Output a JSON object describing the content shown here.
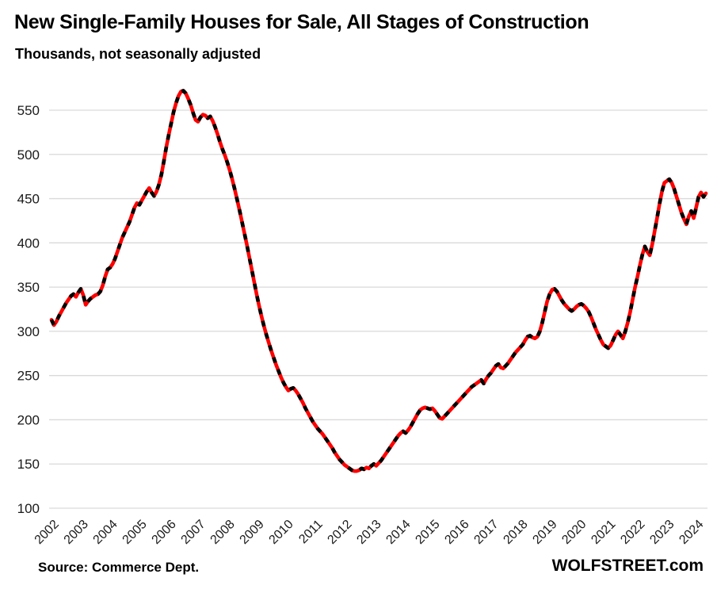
{
  "chart_data": {
    "type": "line",
    "title": "New Single-Family Houses for Sale, All Stages of Construction",
    "subtitle": "Thousands, not seasonally adjusted",
    "x_start": "2002-01",
    "x_frequency": "monthly",
    "x_labels": [
      "2002",
      "2003",
      "2004",
      "2005",
      "2006",
      "2007",
      "2008",
      "2009",
      "2010",
      "2011",
      "2012",
      "2013",
      "2014",
      "2015",
      "2016",
      "2017",
      "2018",
      "2019",
      "2020",
      "2021",
      "2022",
      "2023",
      "2024"
    ],
    "y_ticks": [
      100,
      150,
      200,
      250,
      300,
      350,
      400,
      450,
      500,
      550
    ],
    "ylim": [
      100,
      580
    ],
    "grid": "horizontal-only",
    "legend_position": "none",
    "colors": {
      "line": "#ff0000",
      "dash_overlay": "#000000",
      "gridline": "#d9d9d9",
      "text": "#1a1a1a"
    },
    "series": [
      {
        "name": "New single-family houses for sale (thousands, NSA)",
        "style": "red solid line with black dash overlay",
        "values": [
          313,
          307,
          311,
          317,
          322,
          327,
          332,
          336,
          340,
          342,
          339,
          344,
          348,
          341,
          330,
          334,
          337,
          339,
          341,
          342,
          345,
          352,
          362,
          370,
          372,
          376,
          382,
          390,
          398,
          406,
          412,
          418,
          424,
          432,
          440,
          445,
          443,
          448,
          453,
          458,
          462,
          457,
          453,
          458,
          466,
          477,
          492,
          508,
          522,
          535,
          548,
          558,
          566,
          571,
          572,
          569,
          563,
          556,
          547,
          539,
          537,
          542,
          545,
          544,
          541,
          543,
          538,
          531,
          523,
          514,
          506,
          499,
          491,
          482,
          472,
          461,
          449,
          437,
          424,
          411,
          398,
          384,
          370,
          356,
          342,
          329,
          317,
          306,
          296,
          287,
          278,
          270,
          262,
          255,
          248,
          242,
          237,
          233,
          235,
          236,
          233,
          229,
          224,
          219,
          213,
          208,
          203,
          198,
          194,
          190,
          187,
          184,
          180,
          176,
          172,
          168,
          163,
          159,
          155,
          152,
          149,
          147,
          145,
          143,
          142,
          142,
          143,
          145,
          144,
          146,
          145,
          148,
          150,
          148,
          151,
          154,
          158,
          162,
          166,
          170,
          174,
          178,
          182,
          185,
          187,
          185,
          188,
          192,
          197,
          202,
          207,
          211,
          213,
          214,
          213,
          212,
          213,
          210,
          206,
          202,
          201,
          204,
          207,
          210,
          213,
          216,
          219,
          222,
          225,
          228,
          231,
          234,
          237,
          239,
          241,
          243,
          245,
          241,
          246,
          250,
          253,
          257,
          261,
          263,
          259,
          258,
          261,
          264,
          268,
          272,
          276,
          279,
          282,
          285,
          290,
          294,
          295,
          293,
          292,
          294,
          300,
          310,
          322,
          334,
          342,
          347,
          348,
          345,
          340,
          335,
          331,
          328,
          325,
          323,
          325,
          328,
          330,
          331,
          329,
          326,
          322,
          316,
          309,
          302,
          296,
          290,
          285,
          283,
          281,
          284,
          290,
          296,
          300,
          296,
          292,
          300,
          310,
          322,
          336,
          350,
          362,
          375,
          387,
          396,
          390,
          386,
          398,
          413,
          428,
          444,
          458,
          468,
          470,
          472,
          468,
          461,
          452,
          443,
          434,
          427,
          421,
          430,
          436,
          428,
          440,
          452,
          457,
          452,
          456
        ]
      }
    ]
  },
  "footer": {
    "source": "Source: Commerce Dept.",
    "brand": "WOLFSTREET.com"
  }
}
